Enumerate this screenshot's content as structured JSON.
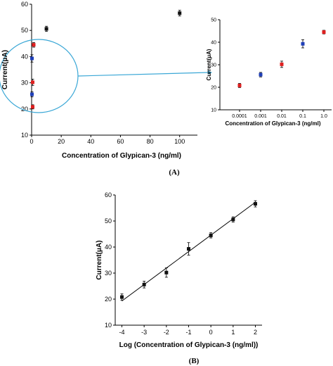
{
  "panels": {
    "a": {
      "label": "(A)"
    },
    "b": {
      "label": "(B)"
    }
  },
  "chart_data": [
    {
      "id": "a_main",
      "type": "scatter",
      "title": "",
      "xlabel": "Concentration of Glypican-3 (ng/ml)",
      "ylabel": "Current(μA)",
      "xlim": [
        0,
        112
      ],
      "ylim": [
        10,
        60
      ],
      "xticks": [
        0,
        20,
        40,
        60,
        80,
        100
      ],
      "yticks": [
        10,
        20,
        30,
        40,
        50,
        60
      ],
      "grid": false,
      "legend": "none",
      "points": [
        {
          "x": 0.0001,
          "y": 20.8,
          "color": "#e02020"
        },
        {
          "x": 0.001,
          "y": 25.6,
          "color": "#1f3fb8"
        },
        {
          "x": 0.01,
          "y": 30.2,
          "color": "#e02020"
        },
        {
          "x": 0.1,
          "y": 39.3,
          "color": "#1f3fb8"
        },
        {
          "x": 1,
          "y": 44.5,
          "color": "#e02020"
        },
        {
          "x": 10,
          "y": 50.6,
          "color": "#111111"
        },
        {
          "x": 100,
          "y": 56.6,
          "color": "#111111"
        }
      ],
      "error": [
        0.8,
        1.0,
        1.2,
        1.4,
        0.9,
        1.0,
        1.1
      ],
      "highlight_circle_color": "#3aa7d6"
    },
    {
      "id": "a_inset",
      "type": "scatter",
      "title": "",
      "xlabel": "Concentration of Glypican-3 (ng/ml)",
      "ylabel": "Current(μA)",
      "x_scale": "log",
      "xticks": [
        "0.0001",
        "0.001",
        "0.01",
        "0.1",
        "1.0"
      ],
      "ylim": [
        10,
        50
      ],
      "yticks": [
        10,
        20,
        30,
        40,
        50
      ],
      "grid": false,
      "legend": "none",
      "points": [
        {
          "x": 0.0001,
          "y": 20.8,
          "color": "#e02020"
        },
        {
          "x": 0.001,
          "y": 25.6,
          "color": "#1f3fb8"
        },
        {
          "x": 0.01,
          "y": 30.2,
          "color": "#e02020"
        },
        {
          "x": 0.1,
          "y": 39.3,
          "color": "#1f3fb8"
        },
        {
          "x": 1,
          "y": 44.5,
          "color": "#e02020"
        }
      ],
      "error": [
        0.9,
        1.0,
        1.4,
        1.8,
        0.8
      ]
    },
    {
      "id": "b",
      "type": "scatter",
      "title": "",
      "xlabel": "Log (Concentration of Glypican-3 (ng/ml))",
      "ylabel": "Current(μA)",
      "xlim": [
        -4.3,
        2.3
      ],
      "ylim": [
        10,
        60
      ],
      "xticks": [
        -4,
        -3,
        -2,
        -1,
        0,
        1,
        2
      ],
      "yticks": [
        10,
        20,
        30,
        40,
        50,
        60
      ],
      "grid": false,
      "legend": "none",
      "x": [
        -4,
        -3,
        -2,
        -1,
        0,
        1,
        2
      ],
      "y": [
        20.8,
        25.6,
        30.2,
        39.3,
        44.5,
        50.6,
        56.6
      ],
      "error": [
        1.2,
        1.3,
        1.8,
        2.4,
        1.0,
        1.0,
        1.2
      ],
      "fit_line": {
        "x": [
          -4,
          2
        ],
        "y": [
          19.3,
          57.2
        ]
      },
      "color": "#111111"
    }
  ]
}
